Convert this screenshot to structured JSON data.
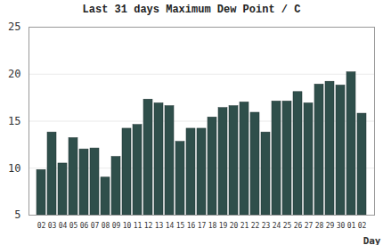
{
  "chart_data": {
    "type": "bar",
    "title": "Last 31 days Maximum Dew Point / C",
    "xlabel": "Day",
    "categories": [
      "02",
      "03",
      "04",
      "05",
      "06",
      "07",
      "08",
      "09",
      "10",
      "11",
      "12",
      "13",
      "14",
      "15",
      "16",
      "17",
      "18",
      "19",
      "20",
      "21",
      "22",
      "23",
      "24",
      "25",
      "26",
      "27",
      "28",
      "29",
      "30",
      "01",
      "02"
    ],
    "values": [
      9.8,
      13.8,
      10.5,
      13.2,
      12.0,
      12.1,
      9.0,
      11.2,
      14.2,
      14.6,
      17.3,
      16.9,
      16.6,
      12.8,
      14.2,
      14.2,
      15.4,
      16.4,
      16.6,
      17.0,
      15.9,
      13.8,
      17.1,
      17.1,
      18.1,
      16.9,
      18.9,
      19.2,
      18.8,
      20.2,
      15.8
    ],
    "color": "#2f4f4b",
    "ylim": [
      5,
      25
    ],
    "yticks": [
      5,
      10,
      15,
      20,
      25
    ],
    "grid": true
  }
}
